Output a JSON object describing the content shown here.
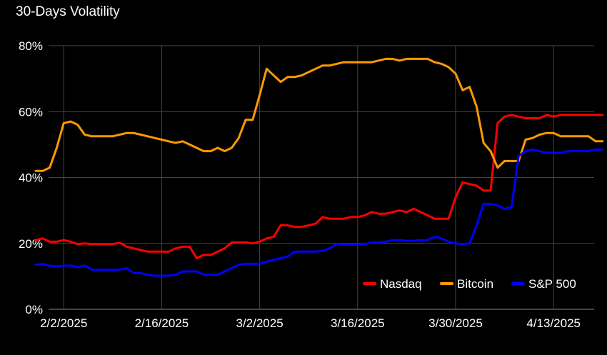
{
  "chart_data": {
    "type": "line",
    "title": "30-Days Volatility",
    "xlabel": "",
    "ylabel": "",
    "ylim": [
      0,
      80
    ],
    "y_ticks": [
      "0%",
      "20%",
      "40%",
      "60%",
      "80%"
    ],
    "x_ticks": [
      "2/2/2025",
      "2/16/2025",
      "3/2/2025",
      "3/16/2025",
      "3/30/2025",
      "4/13/2025"
    ],
    "grid": true,
    "legend_position": "bottom-right",
    "x": [
      "2025-01-29",
      "2025-01-30",
      "2025-01-31",
      "2025-02-01",
      "2025-02-02",
      "2025-02-03",
      "2025-02-04",
      "2025-02-05",
      "2025-02-06",
      "2025-02-07",
      "2025-02-08",
      "2025-02-09",
      "2025-02-10",
      "2025-02-11",
      "2025-02-12",
      "2025-02-13",
      "2025-02-14",
      "2025-02-15",
      "2025-02-16",
      "2025-02-17",
      "2025-02-18",
      "2025-02-19",
      "2025-02-20",
      "2025-02-21",
      "2025-02-22",
      "2025-02-23",
      "2025-02-24",
      "2025-02-25",
      "2025-02-26",
      "2025-02-27",
      "2025-02-28",
      "2025-03-01",
      "2025-03-02",
      "2025-03-03",
      "2025-03-04",
      "2025-03-05",
      "2025-03-06",
      "2025-03-07",
      "2025-03-08",
      "2025-03-09",
      "2025-03-10",
      "2025-03-11",
      "2025-03-12",
      "2025-03-13",
      "2025-03-14",
      "2025-03-15",
      "2025-03-16",
      "2025-03-17",
      "2025-03-18",
      "2025-03-19",
      "2025-03-20",
      "2025-03-21",
      "2025-03-22",
      "2025-03-23",
      "2025-03-24",
      "2025-03-25",
      "2025-03-26",
      "2025-03-27",
      "2025-03-28",
      "2025-03-29",
      "2025-03-30",
      "2025-03-31",
      "2025-04-01",
      "2025-04-02",
      "2025-04-03",
      "2025-04-04",
      "2025-04-05",
      "2025-04-06",
      "2025-04-07",
      "2025-04-08",
      "2025-04-09",
      "2025-04-10",
      "2025-04-11",
      "2025-04-12",
      "2025-04-13",
      "2025-04-14",
      "2025-04-15",
      "2025-04-16",
      "2025-04-17",
      "2025-04-18",
      "2025-04-19",
      "2025-04-20"
    ],
    "series": [
      {
        "name": "Nasdaq",
        "color": "#ff0000",
        "values": [
          21,
          21.5,
          20.5,
          20.5,
          21,
          20.5,
          19.8,
          20,
          19.8,
          19.8,
          19.8,
          19.8,
          20.2,
          19,
          18.5,
          18,
          17.5,
          17.5,
          17.5,
          17.5,
          18.5,
          19,
          19,
          15.5,
          16.5,
          16.5,
          17.5,
          18.5,
          20.3,
          20.3,
          20.3,
          20,
          20.5,
          21.5,
          22,
          25.5,
          25.5,
          25,
          25,
          25.5,
          26,
          28,
          27.5,
          27.5,
          27.5,
          28,
          28,
          28.5,
          29.5,
          29,
          29,
          29.5,
          30,
          29.5,
          30.5,
          29.5,
          28.5,
          27.5,
          27.5,
          27.5,
          34,
          38.5,
          38,
          37.5,
          36,
          36,
          56.5,
          58.5,
          59,
          58.5,
          58,
          58,
          58,
          59,
          58.5,
          59,
          59,
          59,
          59,
          59,
          59,
          59
        ]
      },
      {
        "name": "Bitcoin",
        "color": "#ff9900",
        "values": [
          42,
          42,
          43,
          49,
          56.5,
          57,
          56,
          53,
          52.5,
          52.5,
          52.5,
          52.5,
          53,
          53.5,
          53.5,
          53,
          52.5,
          52,
          51.5,
          51,
          50.5,
          51,
          50,
          49,
          48,
          48,
          49,
          48,
          49,
          52,
          57.5,
          57.5,
          65,
          73,
          71,
          69,
          70.5,
          70.5,
          71,
          72,
          73,
          74,
          74,
          74.5,
          75,
          75,
          75,
          75,
          75,
          75.5,
          76,
          76,
          75.5,
          76,
          76,
          76,
          76,
          75,
          74.5,
          73.5,
          71.5,
          66.5,
          67.5,
          61.5,
          50.5,
          48,
          43,
          45,
          45,
          45,
          51.5,
          52,
          53,
          53.5,
          53.5,
          52.5,
          52.5,
          52.5,
          52.5,
          52.5,
          51,
          51
        ]
      },
      {
        "name": "S&P 500",
        "color": "#0000ff",
        "values": [
          13.5,
          13.8,
          13.2,
          13,
          13.2,
          13.3,
          12.8,
          13.3,
          12,
          12,
          12,
          12,
          12,
          12.5,
          11,
          11,
          10.5,
          10.2,
          10.2,
          10.2,
          10.5,
          11.5,
          11.5,
          11.5,
          10.5,
          10.5,
          10.5,
          11.5,
          12.5,
          13.5,
          13.8,
          13.8,
          13.8,
          14.5,
          15,
          15.5,
          16,
          17.5,
          17.5,
          17.5,
          17.5,
          17.8,
          18.5,
          19.8,
          19.6,
          19.6,
          19.6,
          19.8,
          20.3,
          20.3,
          20.5,
          21,
          21,
          20.8,
          20.8,
          21,
          21,
          22,
          21.5,
          20.5,
          20,
          19.8,
          20,
          25.5,
          32,
          32,
          31.5,
          30.5,
          31,
          46.5,
          48,
          48.5,
          48,
          47.5,
          47.5,
          47.5,
          48,
          48,
          48,
          48,
          48.5,
          48.5
        ]
      }
    ]
  }
}
